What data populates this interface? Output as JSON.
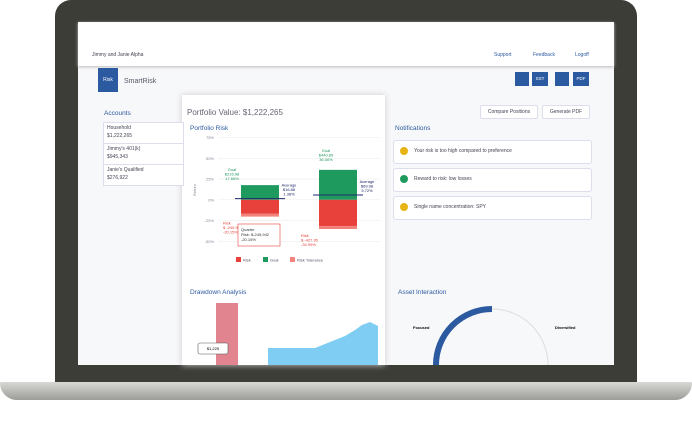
{
  "header": {
    "breadcrumb": "Jimmy and Janie Alpha",
    "nav": [
      "Support",
      "Feedback",
      "Logoff"
    ]
  },
  "toolbar": {
    "tab": "Risk",
    "title": "SmartRisk",
    "buttons": [
      "SST",
      "PDF"
    ]
  },
  "accounts": {
    "title": "Accounts",
    "items": [
      {
        "name": "Household",
        "value": "$1,222,265"
      },
      {
        "name": "Jimmy's 401(k)",
        "value": "$945,343"
      },
      {
        "name": "Janie's Qualified",
        "value": "$276,922"
      }
    ]
  },
  "portfolio": {
    "value": "Portfolio Value: $1,222,265",
    "actions": [
      "Compare Positions",
      "Generate PDF"
    ]
  },
  "portfolio_risk": {
    "title": "Portfolio Risk",
    "y_label": "Return",
    "ylim": [
      -58,
      78
    ],
    "yticks": [
      {
        "value": 75,
        "label": "75%"
      },
      {
        "value": 50,
        "label": "50%"
      },
      {
        "value": 25,
        "label": "25%"
      },
      {
        "value": 0,
        "label": "0%"
      },
      {
        "value": -25,
        "label": "-25%"
      },
      {
        "value": -50,
        "label": "-50%"
      }
    ],
    "columns": [
      {
        "goal_title": "Goal",
        "goal_amount": "$216.98",
        "goal": 17.66,
        "goal_label": "17.66%",
        "avg_title": "Average",
        "avg_amount": "$16.88",
        "avg": 1.38,
        "avg_label": "1.38%",
        "risk_title": "Risk",
        "risk_amount": "$ -245.95",
        "risk": -20.15,
        "risk_label": "-20.15%"
      },
      {
        "goal_title": "Goal",
        "goal_amount": "$440.85",
        "goal": 36.06,
        "goal_label": "36.06%",
        "avg_title": "Average",
        "avg_amount": "$69.98",
        "avg": 5.72,
        "avg_label": "5.72%",
        "risk_title": "Risk",
        "risk_amount": "$ -427.95",
        "risk": -34.99,
        "risk_label": "-34.99%"
      }
    ],
    "tooltip": {
      "title": "Quarter",
      "text": "Risk: $-245,942",
      "percent": "-20.15%"
    },
    "legend": [
      {
        "name": "Risk",
        "color": "#e8413c"
      },
      {
        "name": "Goal",
        "color": "#1f9a5e"
      },
      {
        "name": "Risk Tolerance",
        "color": "#f2837d"
      }
    ]
  },
  "notifications": {
    "title": "Notifications",
    "items": [
      "Your risk is too high compared to preference",
      "Reward to risk: low losses",
      "Single name concentration: SPY"
    ]
  },
  "drawdown": {
    "title": "Drawdown Analysis",
    "tooltip": "$1,225"
  },
  "asset_interaction": {
    "title": "Asset Interaction",
    "left": "Focused",
    "right": "Diversified"
  }
}
